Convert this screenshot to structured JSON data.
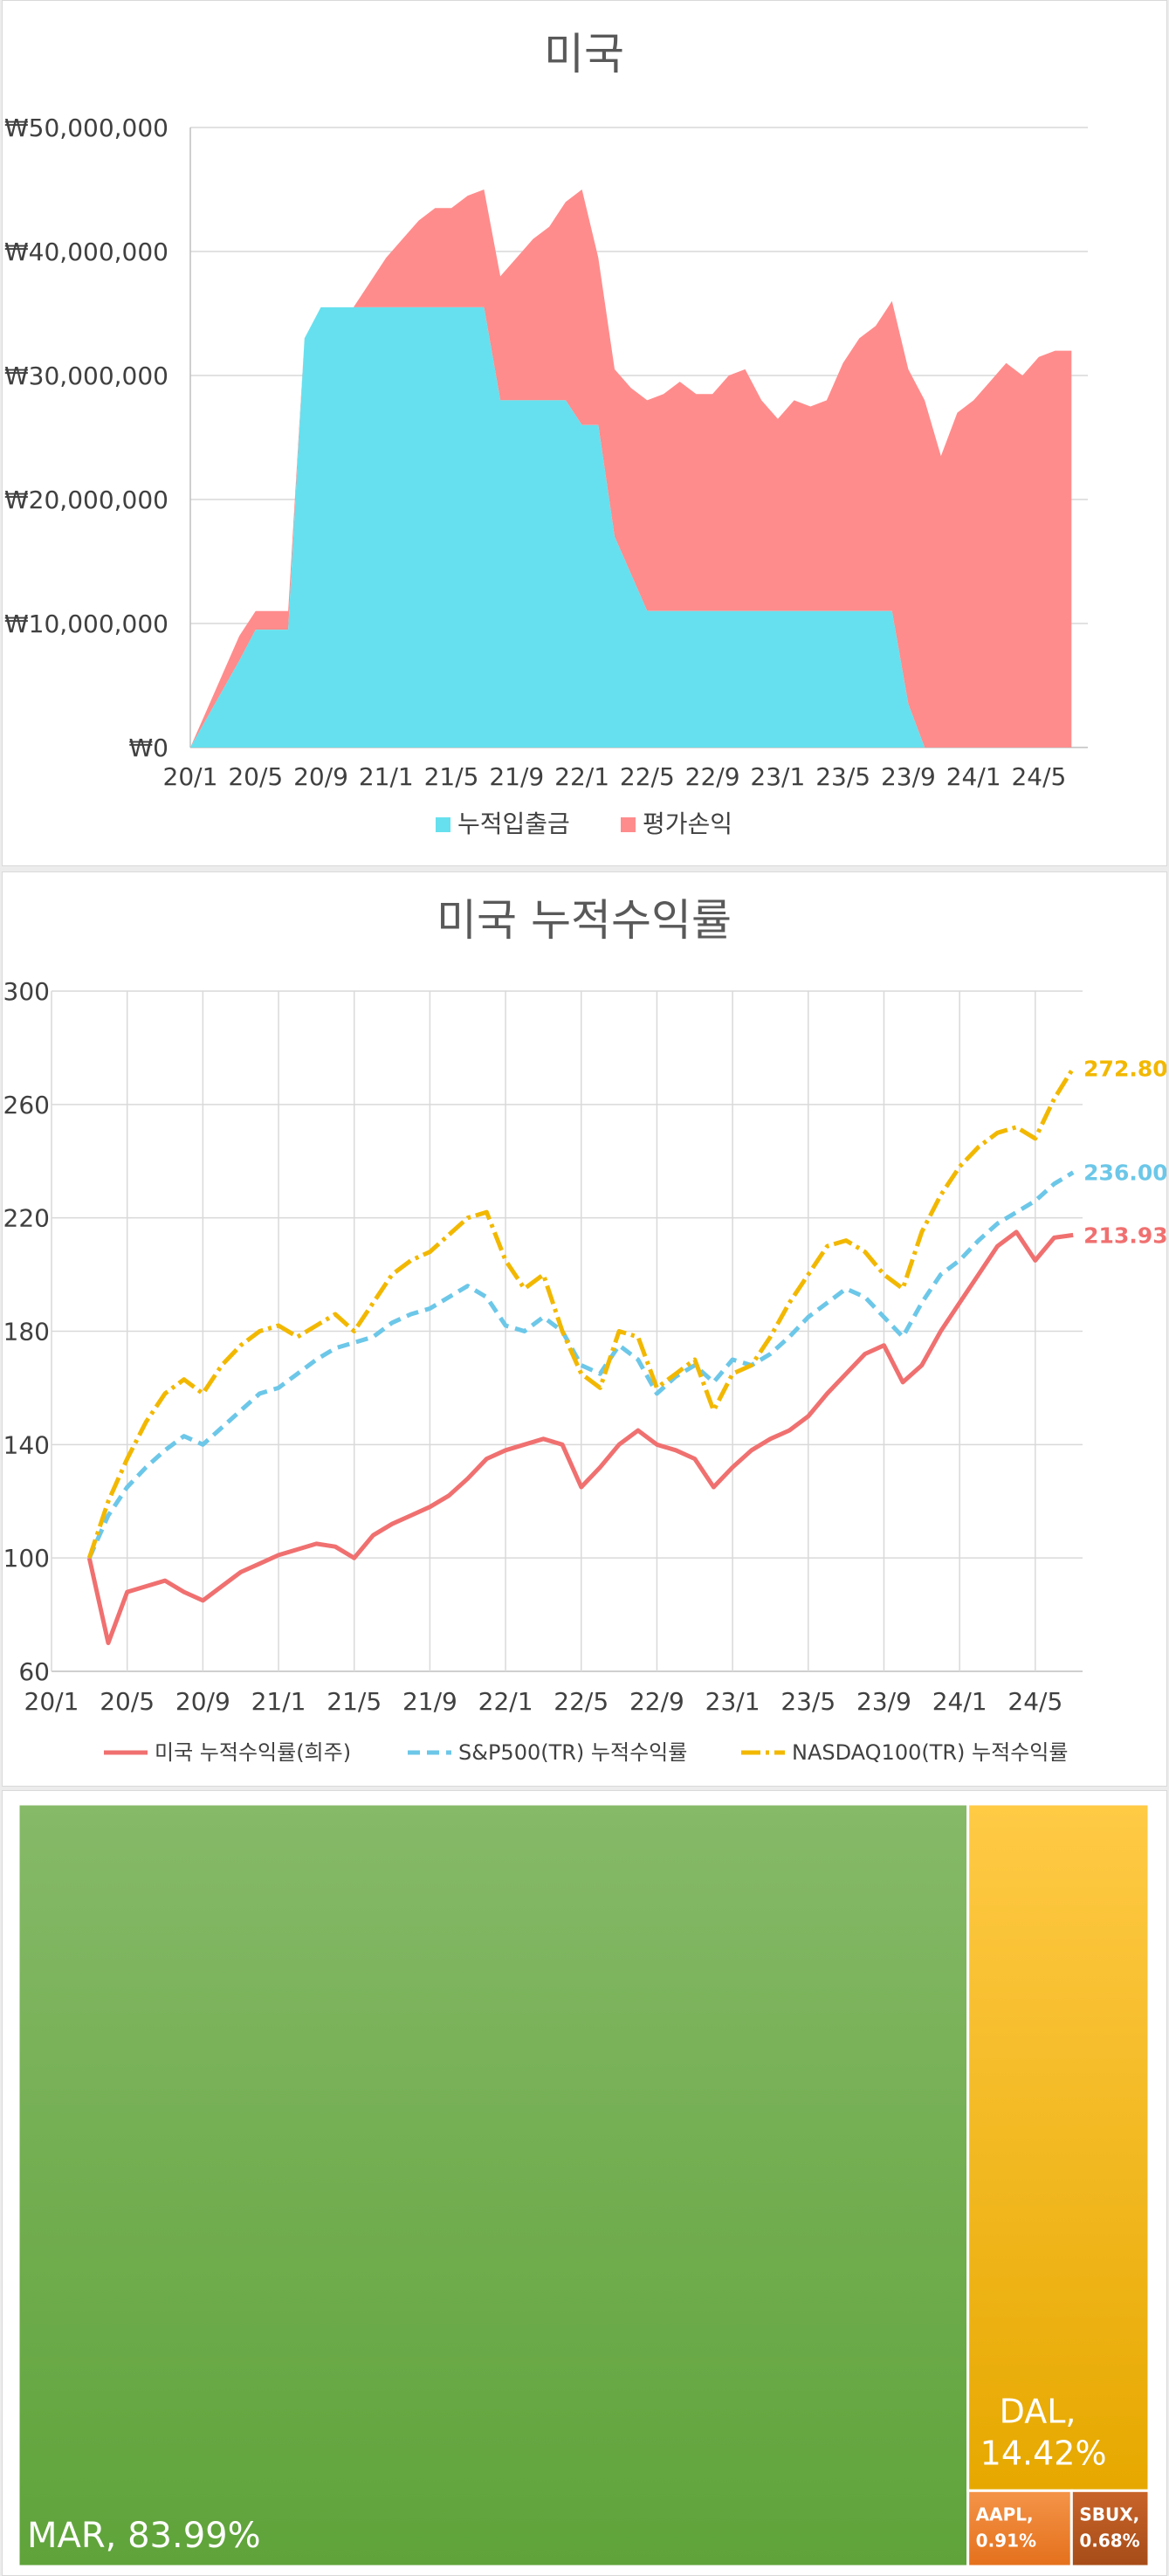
{
  "chart_data": [
    {
      "type": "area",
      "title": "미국",
      "xlabel": "",
      "ylabel": "",
      "x_ticks": [
        "20/1",
        "20/5",
        "20/9",
        "21/1",
        "21/5",
        "21/9",
        "22/1",
        "22/5",
        "22/9",
        "23/1",
        "23/5",
        "23/9",
        "24/1",
        "24/5"
      ],
      "y_ticks": [
        "₩0",
        "₩10,000,000",
        "₩20,000,000",
        "₩30,000,000",
        "₩40,000,000",
        "₩50,000,000"
      ],
      "ylim": [
        0,
        50000000
      ],
      "grid": "horizontal",
      "legend_position": "bottom",
      "stacked": true,
      "x": [
        "2020-01",
        "2020-04",
        "2020-05",
        "2020-06",
        "2020-07",
        "2020-08",
        "2020-09",
        "2020-10",
        "2020-11",
        "2020-12",
        "2021-01",
        "2021-02",
        "2021-03",
        "2021-04",
        "2021-05",
        "2021-06",
        "2021-07",
        "2021-08",
        "2021-09",
        "2021-10",
        "2021-11",
        "2021-12",
        "2022-01",
        "2022-02",
        "2022-03",
        "2022-04",
        "2022-05",
        "2022-06",
        "2022-07",
        "2022-08",
        "2022-09",
        "2022-10",
        "2022-11",
        "2022-12",
        "2023-01",
        "2023-02",
        "2023-03",
        "2023-04",
        "2023-05",
        "2023-06",
        "2023-07",
        "2023-08",
        "2023-09",
        "2023-10",
        "2023-11",
        "2023-12",
        "2024-01",
        "2024-02",
        "2024-03",
        "2024-04",
        "2024-05",
        "2024-06",
        "2024-07"
      ],
      "series": [
        {
          "name": "누적입출금",
          "color": "#66e0ee",
          "values": [
            0,
            7000000,
            9500000,
            9500000,
            9500000,
            33000000,
            35500000,
            35500000,
            35500000,
            35500000,
            35500000,
            35500000,
            35500000,
            35500000,
            35500000,
            35500000,
            35500000,
            28000000,
            28000000,
            28000000,
            28000000,
            28000000,
            26000000,
            26000000,
            17000000,
            14000000,
            11000000,
            11000000,
            11000000,
            11000000,
            11000000,
            11000000,
            11000000,
            11000000,
            11000000,
            11000000,
            11000000,
            11000000,
            11000000,
            11000000,
            11000000,
            11000000,
            3500000,
            0,
            0,
            0,
            0,
            0,
            0,
            0,
            0,
            0,
            0
          ]
        },
        {
          "name": "평가손익",
          "color": "#ff8c8c",
          "values": [
            0,
            2000000,
            1500000,
            1500000,
            1500000,
            0,
            0,
            0,
            0,
            2000000,
            4000000,
            5500000,
            7000000,
            8000000,
            8000000,
            9000000,
            9500000,
            10000000,
            11500000,
            13000000,
            14000000,
            16000000,
            19000000,
            13500000,
            13500000,
            15000000,
            17000000,
            17500000,
            18500000,
            17500000,
            17500000,
            19000000,
            19500000,
            17000000,
            15500000,
            17000000,
            16500000,
            17000000,
            20000000,
            22000000,
            23000000,
            25000000,
            27000000,
            28000000,
            23500000,
            27000000,
            28000000,
            29500000,
            31000000,
            30000000,
            31500000,
            32000000,
            32000000
          ]
        }
      ]
    },
    {
      "type": "line",
      "title": "미국 누적수익률",
      "xlabel": "",
      "ylabel": "",
      "x_ticks": [
        "20/1",
        "20/5",
        "20/9",
        "21/1",
        "21/5",
        "21/9",
        "22/1",
        "22/5",
        "22/9",
        "23/1",
        "23/5",
        "23/9",
        "24/1",
        "24/5"
      ],
      "y_ticks": [
        "60",
        "100",
        "140",
        "180",
        "220",
        "260",
        "300"
      ],
      "ylim": [
        60,
        300
      ],
      "grid": "both",
      "legend_position": "bottom",
      "x": [
        "2020-03",
        "2020-04",
        "2020-05",
        "2020-06",
        "2020-07",
        "2020-08",
        "2020-09",
        "2020-10",
        "2020-11",
        "2020-12",
        "2021-01",
        "2021-02",
        "2021-03",
        "2021-04",
        "2021-05",
        "2021-06",
        "2021-07",
        "2021-08",
        "2021-09",
        "2021-10",
        "2021-11",
        "2021-12",
        "2022-01",
        "2022-02",
        "2022-03",
        "2022-04",
        "2022-05",
        "2022-06",
        "2022-07",
        "2022-08",
        "2022-09",
        "2022-10",
        "2022-11",
        "2022-12",
        "2023-01",
        "2023-02",
        "2023-03",
        "2023-04",
        "2023-05",
        "2023-06",
        "2023-07",
        "2023-08",
        "2023-09",
        "2023-10",
        "2023-11",
        "2023-12",
        "2024-01",
        "2024-02",
        "2024-03",
        "2024-04",
        "2024-05",
        "2024-06",
        "2024-07"
      ],
      "series": [
        {
          "name": "미국 누적수익률(희주)",
          "color": "#f07070",
          "style": "solid",
          "end_label": "213.93",
          "values": [
            100,
            70,
            88,
            90,
            92,
            88,
            85,
            90,
            95,
            98,
            101,
            103,
            105,
            104,
            100,
            108,
            112,
            115,
            118,
            122,
            128,
            135,
            138,
            140,
            142,
            140,
            125,
            132,
            140,
            145,
            140,
            138,
            135,
            125,
            132,
            138,
            142,
            145,
            150,
            158,
            165,
            172,
            175,
            162,
            168,
            180,
            190,
            200,
            210,
            215,
            205,
            213,
            213.93
          ]
        },
        {
          "name": "S&P500(TR) 누적수익률",
          "color": "#6cc7e8",
          "style": "dashed",
          "end_label": "236.00",
          "values": [
            100,
            115,
            125,
            132,
            138,
            143,
            140,
            146,
            152,
            158,
            160,
            165,
            170,
            174,
            176,
            178,
            183,
            186,
            188,
            192,
            196,
            192,
            182,
            180,
            185,
            180,
            168,
            165,
            175,
            170,
            158,
            164,
            168,
            162,
            170,
            168,
            172,
            178,
            185,
            190,
            195,
            192,
            185,
            178,
            190,
            200,
            205,
            212,
            218,
            222,
            226,
            232,
            236.0
          ]
        },
        {
          "name": "NASDAQ100(TR) 누적수익률",
          "color": "#f2b800",
          "style": "dashdot",
          "end_label": "272.80",
          "values": [
            100,
            120,
            135,
            148,
            158,
            163,
            158,
            168,
            175,
            180,
            182,
            178,
            182,
            186,
            180,
            190,
            200,
            205,
            208,
            214,
            220,
            222,
            205,
            195,
            200,
            180,
            165,
            160,
            180,
            178,
            160,
            165,
            170,
            152,
            165,
            168,
            178,
            190,
            200,
            210,
            212,
            208,
            200,
            195,
            215,
            228,
            238,
            245,
            250,
            252,
            248,
            262,
            272.8
          ]
        }
      ]
    },
    {
      "type": "treemap",
      "items": [
        {
          "name": "MAR",
          "value": 83.99,
          "label": "MAR, 83.99%",
          "color": "#6aa842"
        },
        {
          "name": "DAL",
          "value": 14.42,
          "label_line1": "DAL,",
          "label_line2": "14.42%",
          "color": "#f7b500"
        },
        {
          "name": "AAPL",
          "value": 0.91,
          "label_line1": "AAPL,",
          "label_line2": "0.91%",
          "color": "#ee8030"
        },
        {
          "name": "SBUX",
          "value": 0.68,
          "label_line1": "SBUX,",
          "label_line2": "0.68%",
          "color": "#b9561d"
        }
      ]
    }
  ]
}
